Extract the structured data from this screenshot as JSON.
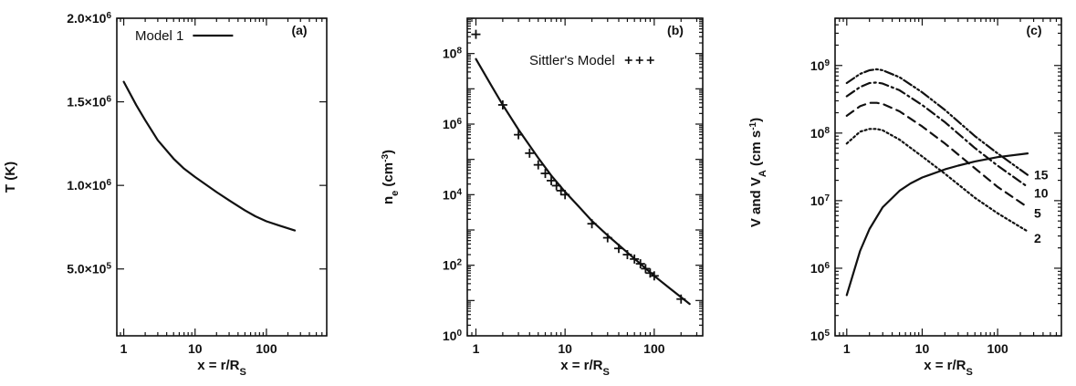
{
  "chart_data": [
    {
      "panel": "(a)",
      "type": "line",
      "xscale": "log",
      "xlim": [
        0.8,
        700
      ],
      "ylim": [
        100000.0,
        2000000.0
      ],
      "xlabel": "x = r/R",
      "xlabel_sub": "S",
      "ylabel": "T (K)",
      "xticks": [
        {
          "v": 1,
          "t": "1"
        },
        {
          "v": 10,
          "t": "10"
        },
        {
          "v": 100,
          "t": "100"
        }
      ],
      "yticks": [
        {
          "v": 500000.0,
          "m": "5.0×10",
          "e": "5"
        },
        {
          "v": 1000000.0,
          "m": "1.0×10",
          "e": "6"
        },
        {
          "v": 1500000.0,
          "m": "1.5×10",
          "e": "6"
        },
        {
          "v": 2000000.0,
          "m": "2.0×10",
          "e": "6"
        }
      ],
      "legend": [
        {
          "name": "Model 1",
          "style": "solid"
        }
      ],
      "series": [
        {
          "name": "Model 1",
          "style": "solid",
          "x": [
            1,
            1.5,
            2,
            3,
            5,
            7,
            10,
            20,
            30,
            50,
            70,
            100,
            150,
            250
          ],
          "y": [
            1620000.0,
            1480000.0,
            1390000.0,
            1270000.0,
            1160000.0,
            1100000.0,
            1050000.0,
            960000.0,
            910000.0,
            850000.0,
            815000.0,
            785000.0,
            760000.0,
            730000.0
          ]
        }
      ]
    },
    {
      "panel": "(b)",
      "type": "line",
      "xscale": "log",
      "yscale": "log",
      "xlim": [
        0.8,
        350
      ],
      "ylim": [
        1,
        1000000000.0
      ],
      "xlabel": "x = r/R",
      "xlabel_sub": "S",
      "ylabel": "n",
      "ylabel_sub": "e",
      "ylabel_rest": " (cm",
      "ylabel_sup": "-3",
      "ylabel_end": ")",
      "xticks": [
        {
          "v": 1,
          "t": "1"
        },
        {
          "v": 10,
          "t": "10"
        },
        {
          "v": 100,
          "t": "100"
        }
      ],
      "yticks": [
        {
          "v": 1,
          "m": "10",
          "e": "0"
        },
        {
          "v": 100,
          "m": "10",
          "e": "2"
        },
        {
          "v": 10000,
          "m": "10",
          "e": "4"
        },
        {
          "v": 1000000,
          "m": "10",
          "e": "6"
        },
        {
          "v": 100000000,
          "m": "10",
          "e": "8"
        }
      ],
      "legend": [
        {
          "name": "Sittler's Model",
          "style": "plus"
        }
      ],
      "series": [
        {
          "name": "model",
          "style": "solid",
          "x": [
            1,
            1.5,
            2,
            3,
            5,
            7,
            10,
            15,
            20,
            30,
            50,
            70,
            100,
            150,
            250
          ],
          "y": [
            70000000.0,
            12000000.0,
            3500000.0,
            700000.0,
            110000.0,
            35000.0,
            12000.0,
            4000.0,
            1800.0,
            700.0,
            230.0,
            110.0,
            50.0,
            22.0,
            8
          ]
        },
        {
          "name": "Sittler's Model",
          "style": "plus",
          "x": [
            1,
            2,
            3,
            4,
            5,
            6,
            7,
            8,
            9,
            10,
            20,
            30,
            40,
            50,
            60,
            70,
            80,
            90,
            100,
            200
          ],
          "y": [
            350000000.0,
            3500000.0,
            500000.0,
            150000.0,
            70000.0,
            40000.0,
            25000.0,
            18000.0,
            13000.0,
            10000.0,
            1500.0,
            600.0,
            300.0,
            200.0,
            150.0,
            110.0,
            80.0,
            60.0,
            50.0,
            11.0
          ]
        }
      ]
    },
    {
      "panel": "(c)",
      "type": "line",
      "xscale": "log",
      "yscale": "log",
      "xlim": [
        0.7,
        700
      ],
      "ylim": [
        100000.0,
        5000000000.0
      ],
      "xlabel": "x = r/R",
      "xlabel_sub": "S",
      "ylabel": "V and V",
      "ylabel_sub": "A",
      "ylabel_rest": " (cm s",
      "ylabel_sup": "-1",
      "ylabel_end": ")",
      "xticks": [
        {
          "v": 1,
          "t": "1"
        },
        {
          "v": 10,
          "t": "10"
        },
        {
          "v": 100,
          "t": "100"
        }
      ],
      "yticks": [
        {
          "v": 100000,
          "m": "10",
          "e": "5"
        },
        {
          "v": 1000000,
          "m": "10",
          "e": "6"
        },
        {
          "v": 10000000,
          "m": "10",
          "e": "7"
        },
        {
          "v": 100000000,
          "m": "10",
          "e": "8"
        },
        {
          "v": 1000000000,
          "m": "10",
          "e": "9"
        }
      ],
      "series": [
        {
          "name": "V",
          "style": "solid",
          "x": [
            1,
            1.5,
            2,
            3,
            5,
            7,
            10,
            20,
            30,
            50,
            100,
            250
          ],
          "y": [
            400000.0,
            1800000.0,
            3800000.0,
            8000000.0,
            14000000.0,
            18000000.0,
            22000000.0,
            29000000.0,
            33000000.0,
            38000000.0,
            44000000.0,
            50000000.0
          ]
        },
        {
          "name": "2",
          "style": "dotted",
          "x": [
            1,
            1.5,
            2,
            2.5,
            3,
            5,
            10,
            20,
            50,
            100,
            250
          ],
          "y": [
            70000000.0,
            105000000.0,
            115000000.0,
            115000000.0,
            110000000.0,
            80000000.0,
            45000000.0,
            25000000.0,
            11000000.0,
            6500000.0,
            3500000.0
          ]
        },
        {
          "name": "5",
          "style": "dashed",
          "x": [
            1,
            1.5,
            2,
            2.5,
            3,
            5,
            10,
            20,
            50,
            100,
            250
          ],
          "y": [
            180000000.0,
            250000000.0,
            280000000.0,
            280000000.0,
            270000000.0,
            210000000.0,
            125000000.0,
            70000000.0,
            30000000.0,
            16000000.0,
            8000000.0
          ]
        },
        {
          "name": "10",
          "style": "dashdot",
          "x": [
            1,
            1.5,
            2,
            2.5,
            3,
            5,
            10,
            20,
            50,
            100,
            250
          ],
          "y": [
            350000000.0,
            480000000.0,
            550000000.0,
            560000000.0,
            540000000.0,
            430000000.0,
            260000000.0,
            145000000.0,
            60000000.0,
            33000000.0,
            16000000.0
          ]
        },
        {
          "name": "15",
          "style": "dashdotdot",
          "x": [
            1,
            1.5,
            2,
            2.5,
            3,
            5,
            10,
            20,
            50,
            100,
            250
          ],
          "y": [
            550000000.0,
            750000000.0,
            850000000.0,
            880000000.0,
            850000000.0,
            670000000.0,
            400000000.0,
            220000000.0,
            90000000.0,
            50000000.0,
            24000000.0
          ]
        }
      ],
      "curve_labels": [
        {
          "text": "15",
          "y": 24000000.0
        },
        {
          "text": "10",
          "y": 13000000.0
        },
        {
          "text": "5",
          "y": 6500000.0
        },
        {
          "text": "2",
          "y": 2800000.0
        }
      ]
    }
  ]
}
